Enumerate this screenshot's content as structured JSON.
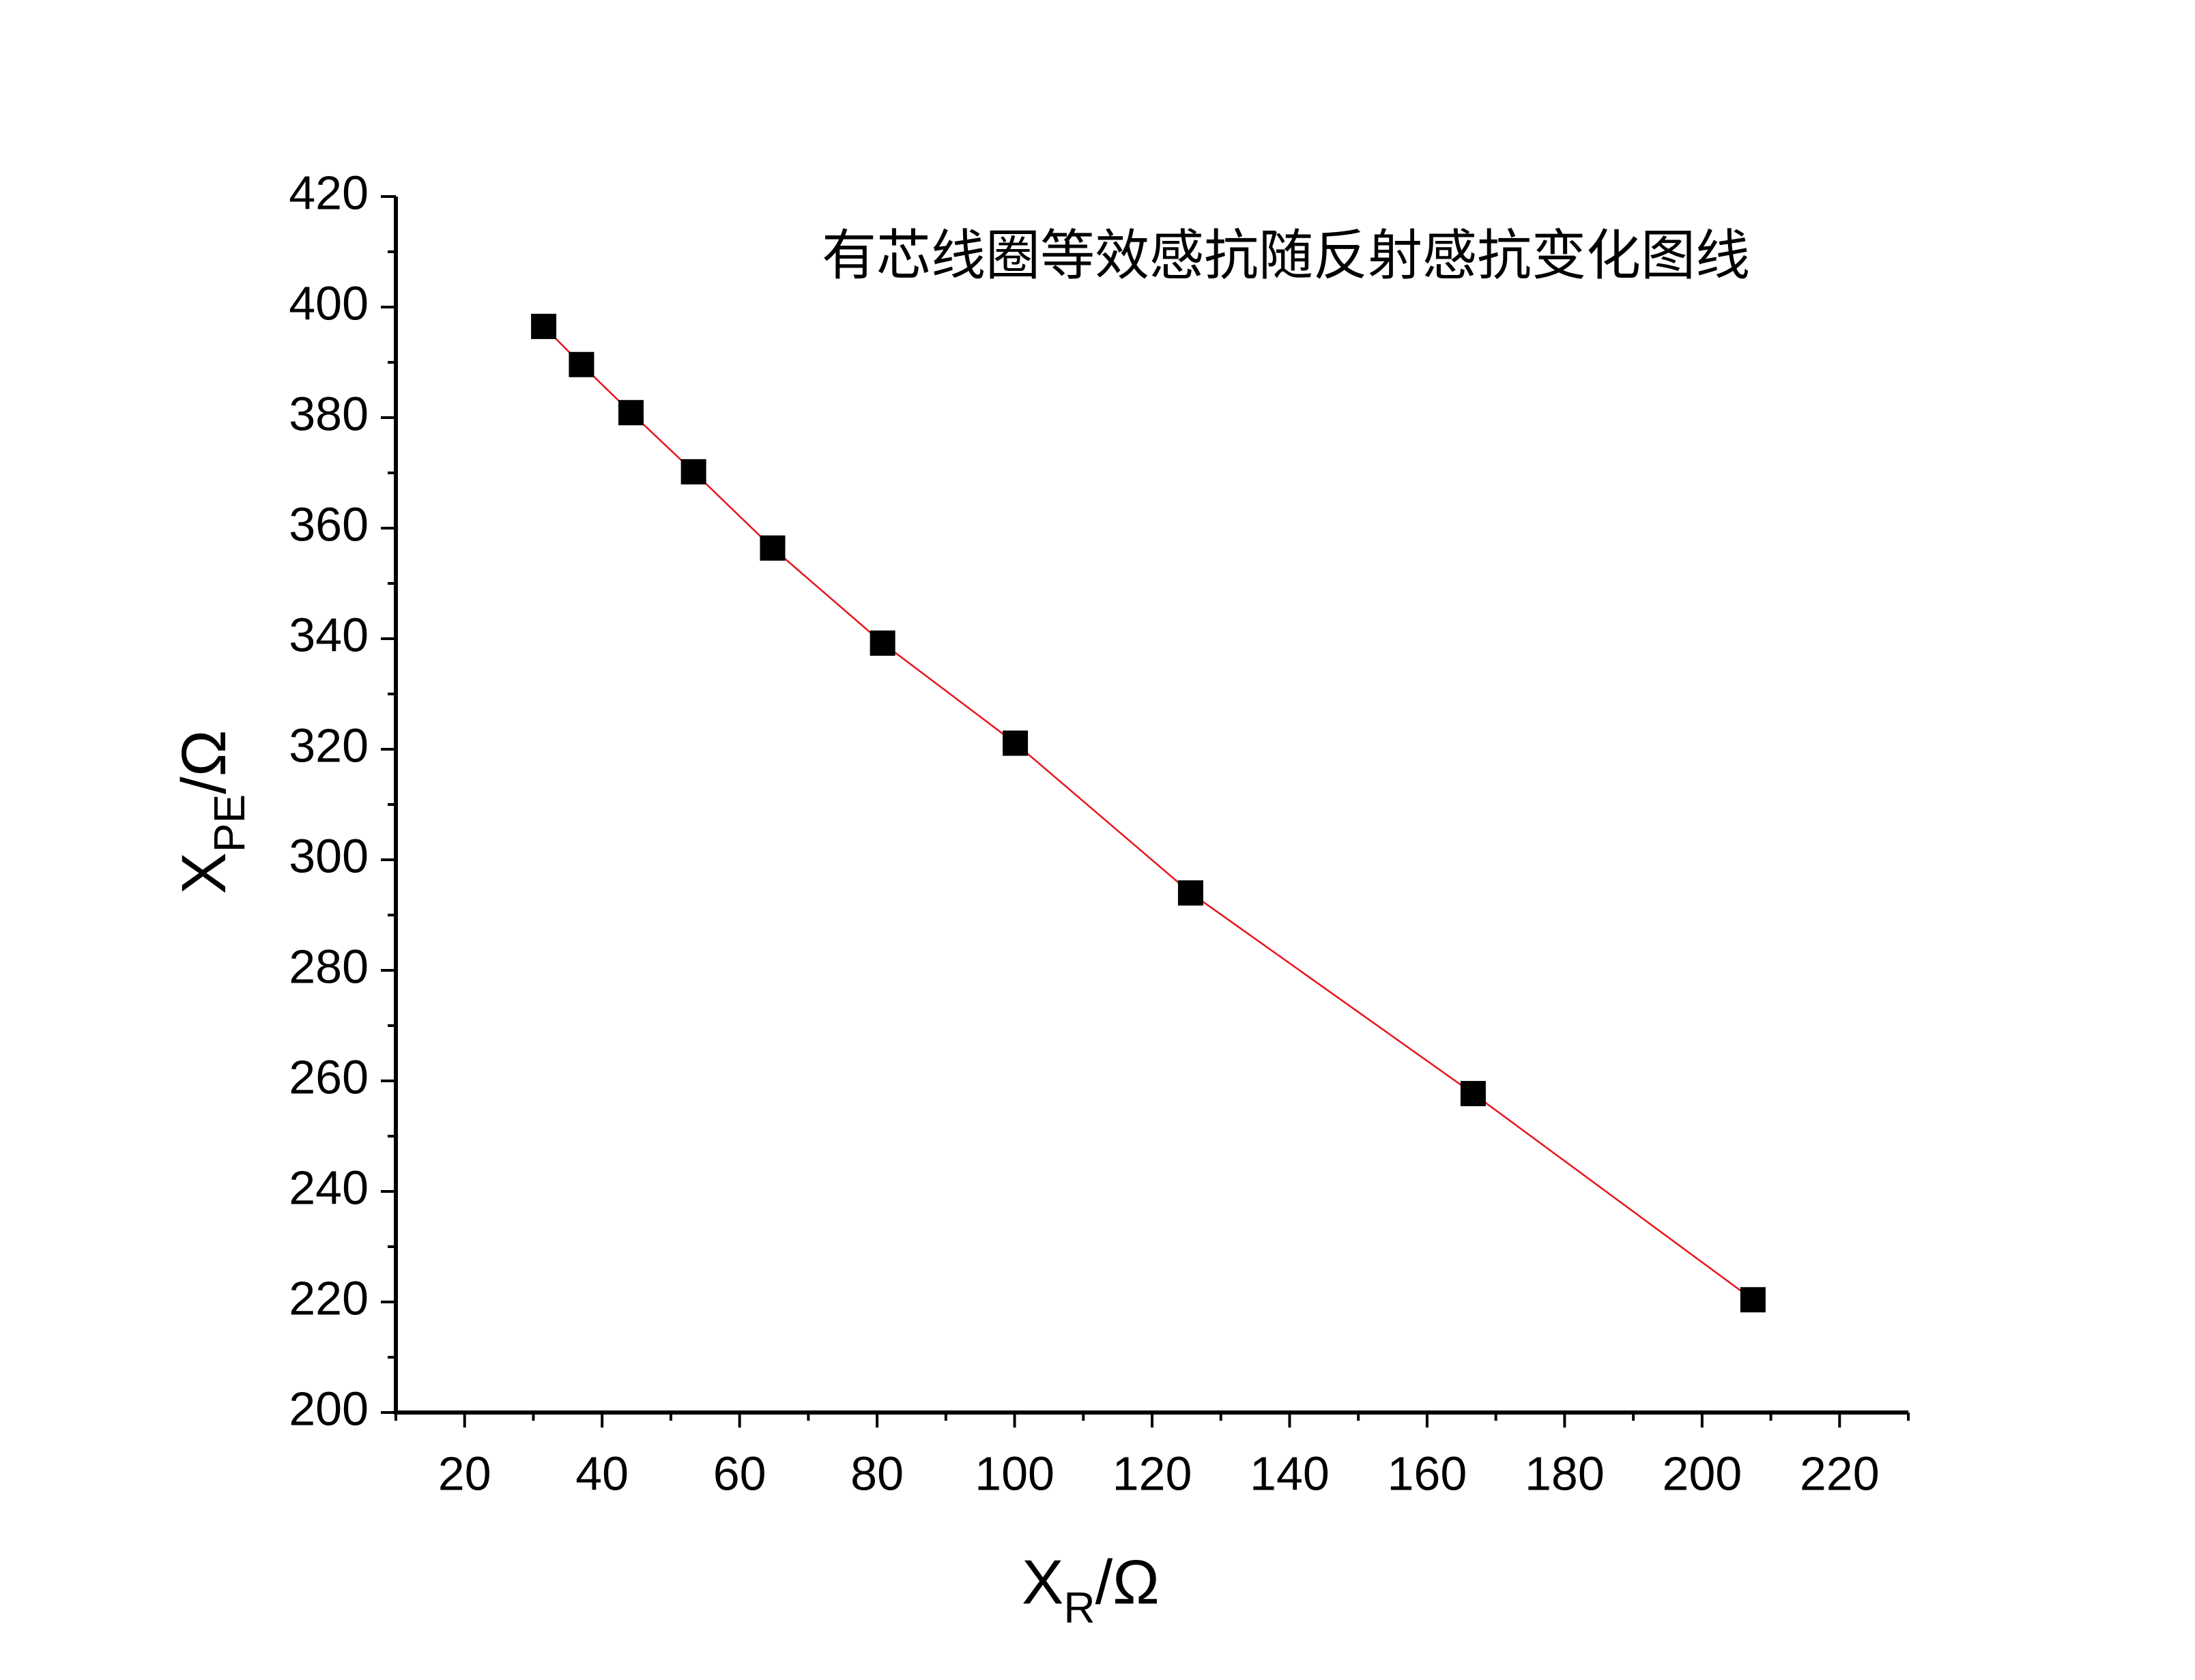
{
  "chart_data": {
    "type": "line",
    "title": "有芯线圈等效感抗随反射感抗变化图线",
    "x_label": {
      "main": "X",
      "sub": "R",
      "unit": "/Ω"
    },
    "y_label": {
      "main": "X",
      "sub": "PE",
      "unit": "/Ω"
    },
    "x": [
      31.5,
      37.0,
      44.2,
      53.3,
      64.8,
      80.8,
      100.1,
      125.6,
      166.7,
      207.4
    ],
    "y": [
      396.5,
      389.6,
      380.9,
      370.2,
      356.4,
      339.2,
      321.1,
      294.0,
      257.7,
      220.4
    ],
    "line_color": "#e8141c",
    "marker_color": "#000000",
    "xlim": [
      10,
      230
    ],
    "xticks": [
      20,
      40,
      60,
      80,
      100,
      120,
      140,
      160,
      180,
      200,
      220
    ],
    "ylim": [
      200,
      420
    ],
    "yticks": [
      200,
      220,
      240,
      260,
      280,
      300,
      320,
      340,
      360,
      380,
      400,
      420
    ],
    "grid": false
  }
}
